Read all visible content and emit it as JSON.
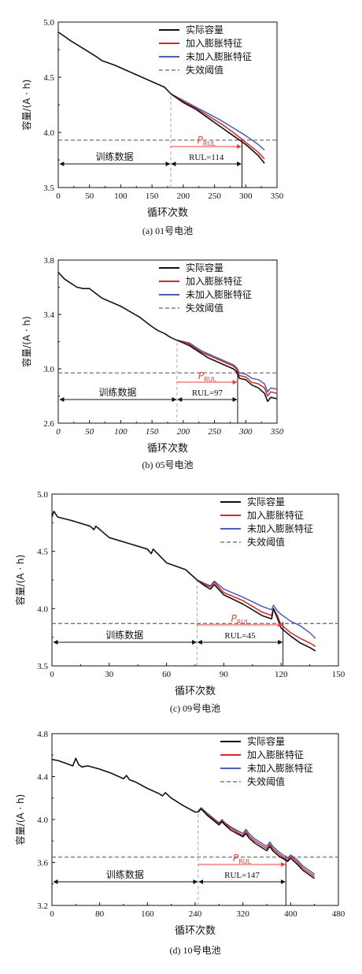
{
  "colors": {
    "actual": "#111111",
    "with_feature": "#d62728",
    "without_feature": "#4a5fb5",
    "threshold": "#666666",
    "split_line": "#aaaaaa",
    "annotation_red": "#e8413c"
  },
  "chart_data": [
    {
      "type": "line",
      "caption": "(a) 01号电池",
      "xlabel": "循环次数",
      "ylabel": "容量/(A · h)",
      "xlim": [
        0,
        350
      ],
      "ylim": [
        3.5,
        5.0
      ],
      "x_ticks": [
        "0",
        "50",
        "100",
        "150",
        "200",
        "250",
        "300",
        "350"
      ],
      "y_ticks": [
        "3.5",
        "4.0",
        "4.5",
        "5.0"
      ],
      "legend": [
        "实际容量",
        "加入膨胀特征",
        "未加入膨胀特征",
        "失效阈值"
      ],
      "legend_position": "top-right",
      "threshold": 3.93,
      "train_end": 180,
      "fail_cycle": 294,
      "rul_label": "RUL=114",
      "p_rul_label": "P",
      "p_rul_sub": "RUL",
      "train_label": "训练数据",
      "series": [
        {
          "name": "实际容量",
          "x": [
            0,
            20,
            40,
            60,
            70,
            90,
            110,
            130,
            150,
            170,
            180,
            200,
            220,
            240,
            260,
            280,
            300,
            320,
            330
          ],
          "y": [
            4.91,
            4.83,
            4.76,
            4.69,
            4.65,
            4.61,
            4.56,
            4.51,
            4.46,
            4.41,
            4.35,
            4.27,
            4.21,
            4.13,
            4.05,
            3.97,
            3.89,
            3.79,
            3.72
          ]
        },
        {
          "name": "加入膨胀特征",
          "x": [
            180,
            200,
            220,
            240,
            260,
            280,
            300,
            320,
            330
          ],
          "y": [
            4.35,
            4.28,
            4.22,
            4.15,
            4.08,
            4.0,
            3.91,
            3.82,
            3.76
          ]
        },
        {
          "name": "未加入膨胀特征",
          "x": [
            180,
            200,
            220,
            240,
            260,
            280,
            300,
            320,
            330
          ],
          "y": [
            4.35,
            4.29,
            4.23,
            4.17,
            4.11,
            4.04,
            3.97,
            3.89,
            3.84
          ]
        }
      ]
    },
    {
      "type": "line",
      "caption": "(b) 05号电池",
      "xlabel": "循环次数",
      "ylabel": "容量/(A · h)",
      "xlim": [
        0,
        350
      ],
      "ylim": [
        2.6,
        3.8
      ],
      "x_ticks": [
        "0",
        "50",
        "100",
        "150",
        "200",
        "250",
        "300",
        "350"
      ],
      "y_ticks": [
        "2.6",
        "3.0",
        "3.4",
        "3.8"
      ],
      "legend": [
        "实际容量",
        "加入膨胀特征",
        "未加入膨胀特征",
        "失效阈值"
      ],
      "legend_position": "top-right",
      "threshold": 2.97,
      "train_end": 190,
      "fail_cycle": 287,
      "rul_label": "RUL=97",
      "p_rul_label": "P",
      "p_rul_sub": "RUL",
      "train_label": "训练数据",
      "series": [
        {
          "name": "实际容量",
          "x": [
            0,
            10,
            30,
            40,
            50,
            70,
            100,
            130,
            150,
            160,
            170,
            180,
            190,
            200,
            210,
            220,
            230,
            240,
            250,
            260,
            270,
            280,
            285,
            290,
            300,
            310,
            320,
            330,
            335,
            340,
            350
          ],
          "y": [
            3.71,
            3.66,
            3.6,
            3.59,
            3.59,
            3.52,
            3.46,
            3.38,
            3.31,
            3.28,
            3.26,
            3.23,
            3.21,
            3.19,
            3.17,
            3.14,
            3.11,
            3.08,
            3.06,
            3.04,
            3.02,
            3.0,
            2.98,
            2.93,
            2.92,
            2.88,
            2.86,
            2.82,
            2.76,
            2.79,
            2.78
          ]
        },
        {
          "name": "加入膨胀特征",
          "x": [
            190,
            200,
            210,
            220,
            230,
            240,
            250,
            260,
            270,
            280,
            285,
            290,
            300,
            310,
            320,
            330,
            335,
            340,
            350
          ],
          "y": [
            3.21,
            3.2,
            3.18,
            3.15,
            3.12,
            3.1,
            3.08,
            3.06,
            3.04,
            3.02,
            3.0,
            2.95,
            2.94,
            2.9,
            2.89,
            2.86,
            2.8,
            2.83,
            2.82
          ]
        },
        {
          "name": "未加入膨胀特征",
          "x": [
            190,
            200,
            210,
            220,
            230,
            240,
            250,
            260,
            270,
            280,
            285,
            290,
            300,
            310,
            320,
            330,
            335,
            340,
            350
          ],
          "y": [
            3.21,
            3.2,
            3.19,
            3.16,
            3.13,
            3.11,
            3.09,
            3.07,
            3.05,
            3.03,
            3.01,
            2.97,
            2.96,
            2.93,
            2.92,
            2.89,
            2.83,
            2.86,
            2.85
          ]
        }
      ]
    },
    {
      "type": "line",
      "caption": "(c) 09号电池",
      "xlabel": "循环次数",
      "ylabel": "容量/(A · h)",
      "xlim": [
        0,
        150
      ],
      "ylim": [
        3.5,
        5.0
      ],
      "x_ticks": [
        "0",
        "30",
        "60",
        "90",
        "120",
        "150"
      ],
      "y_ticks": [
        "3.5",
        "4.0",
        "4.5",
        "5.0"
      ],
      "legend": [
        "实际容量",
        "加入膨胀特征",
        "未加入膨胀特征",
        "失效阈值"
      ],
      "legend_position": "top-right",
      "threshold": 3.87,
      "train_end": 76,
      "fail_cycle": 121,
      "rul_label": "RUL=45",
      "p_rul_label": "P",
      "p_rul_sub": "RUL",
      "train_label": "训练数据",
      "series": [
        {
          "name": "实际容量",
          "x": [
            0,
            1,
            3,
            10,
            20,
            22,
            23,
            30,
            40,
            50,
            52,
            53,
            60,
            70,
            76,
            80,
            83,
            85,
            90,
            100,
            110,
            115,
            116,
            118,
            120,
            125,
            130,
            135,
            138
          ],
          "y": [
            4.8,
            4.85,
            4.8,
            4.77,
            4.72,
            4.69,
            4.72,
            4.62,
            4.57,
            4.52,
            4.48,
            4.52,
            4.4,
            4.34,
            4.25,
            4.2,
            4.17,
            4.21,
            4.12,
            4.04,
            3.94,
            3.91,
            4.0,
            3.92,
            3.83,
            3.76,
            3.7,
            3.66,
            3.63
          ]
        },
        {
          "name": "加入膨胀特征",
          "x": [
            76,
            80,
            83,
            85,
            90,
            100,
            110,
            115,
            116,
            118,
            120,
            125,
            130,
            135,
            138
          ],
          "y": [
            4.25,
            4.21,
            4.19,
            4.23,
            4.14,
            4.07,
            3.97,
            3.94,
            4.0,
            3.94,
            3.86,
            3.79,
            3.74,
            3.7,
            3.67
          ]
        },
        {
          "name": "未加入膨胀特征",
          "x": [
            76,
            80,
            83,
            85,
            90,
            100,
            110,
            115,
            116,
            118,
            120,
            125,
            130,
            135,
            138
          ],
          "y": [
            4.25,
            4.22,
            4.2,
            4.24,
            4.17,
            4.1,
            4.02,
            3.99,
            4.03,
            3.98,
            3.95,
            3.89,
            3.85,
            3.79,
            3.74
          ]
        }
      ]
    },
    {
      "type": "line",
      "caption": "(d) 10号电池",
      "xlabel": "循环次数",
      "ylabel": "容量/(A · h)",
      "xlim": [
        0,
        480
      ],
      "ylim": [
        3.2,
        4.8
      ],
      "x_ticks": [
        "0",
        "80",
        "160",
        "240",
        "320",
        "400",
        "480"
      ],
      "y_ticks": [
        "3.2",
        "3.6",
        "4.0",
        "4.4",
        "4.8"
      ],
      "legend": [
        "实际容量",
        "加入膨胀特征",
        "未加入膨胀特征",
        "失效阈值"
      ],
      "legend_position": "top-right",
      "threshold": 3.65,
      "train_end": 245,
      "fail_cycle": 392,
      "rul_label": "RUL=147",
      "p_rul_label": "P",
      "p_rul_sub": "RUL",
      "train_label": "训练数据",
      "series": [
        {
          "name": "实际容量",
          "x": [
            0,
            10,
            20,
            35,
            40,
            45,
            50,
            60,
            80,
            100,
            120,
            125,
            130,
            140,
            160,
            180,
            185,
            190,
            200,
            220,
            240,
            245,
            250,
            260,
            280,
            285,
            290,
            300,
            320,
            325,
            330,
            340,
            360,
            365,
            370,
            380,
            395,
            400,
            410,
            420,
            430,
            440
          ],
          "y": [
            4.56,
            4.55,
            4.53,
            4.5,
            4.57,
            4.51,
            4.49,
            4.5,
            4.47,
            4.43,
            4.38,
            4.41,
            4.37,
            4.35,
            4.29,
            4.24,
            4.22,
            4.25,
            4.2,
            4.13,
            4.07,
            4.07,
            4.1,
            4.04,
            3.95,
            3.98,
            3.95,
            3.9,
            3.84,
            3.87,
            3.83,
            3.78,
            3.71,
            3.75,
            3.71,
            3.66,
            3.61,
            3.64,
            3.59,
            3.53,
            3.49,
            3.45
          ]
        },
        {
          "name": "加入膨胀特征",
          "x": [
            245,
            250,
            260,
            280,
            285,
            290,
            300,
            320,
            325,
            330,
            340,
            360,
            365,
            370,
            380,
            395,
            400,
            410,
            420,
            430,
            440
          ],
          "y": [
            4.08,
            4.1,
            4.05,
            3.96,
            3.99,
            3.96,
            3.92,
            3.85,
            3.89,
            3.85,
            3.8,
            3.73,
            3.77,
            3.73,
            3.68,
            3.62,
            3.66,
            3.61,
            3.55,
            3.51,
            3.47
          ]
        },
        {
          "name": "未加入膨胀特征",
          "x": [
            245,
            250,
            260,
            280,
            285,
            290,
            300,
            320,
            325,
            330,
            340,
            360,
            365,
            370,
            380,
            395,
            400,
            410,
            420,
            430,
            440
          ],
          "y": [
            4.08,
            4.11,
            4.06,
            3.97,
            4.0,
            3.97,
            3.93,
            3.87,
            3.91,
            3.87,
            3.82,
            3.75,
            3.79,
            3.75,
            3.7,
            3.64,
            3.67,
            3.63,
            3.57,
            3.53,
            3.49
          ]
        }
      ]
    }
  ]
}
